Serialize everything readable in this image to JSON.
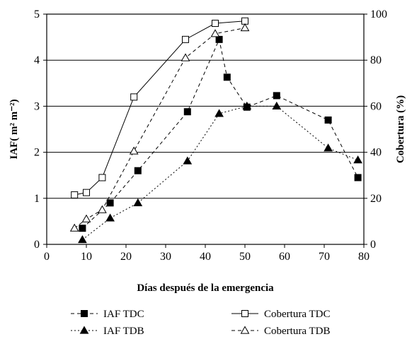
{
  "chart_data": {
    "type": "line",
    "xlabel": "Días después de la emergencia",
    "ylabel": "IAF( m² m⁻²)",
    "y2label": "Cobertura (%)",
    "xlim": [
      0,
      80
    ],
    "ylim": [
      0,
      5
    ],
    "y2lim": [
      0,
      100
    ],
    "xticks": [
      "0",
      "10",
      "20",
      "30",
      "40",
      "50",
      "60",
      "70",
      "80"
    ],
    "yticks": [
      "0",
      "1",
      "2",
      "3",
      "4",
      "5"
    ],
    "y2ticks": [
      "0",
      "20",
      "40",
      "60",
      "80",
      "100"
    ],
    "grid": "horizontal",
    "legend_position": "bottom",
    "series": [
      {
        "name": "IAF TDC",
        "axis": "left",
        "marker": "filled-square",
        "line": "dashed",
        "x": [
          9,
          16,
          23,
          35.5,
          43.5,
          45.5,
          50.5,
          58,
          71,
          78.5
        ],
        "y": [
          0.35,
          0.9,
          1.6,
          2.88,
          4.45,
          3.63,
          2.98,
          3.23,
          2.7,
          1.45
        ]
      },
      {
        "name": "IAF TDB",
        "axis": "left",
        "marker": "filled-triangle",
        "line": "dotted",
        "x": [
          9,
          16,
          23,
          35.5,
          43.5,
          50.5,
          58,
          71,
          78.5
        ],
        "y": [
          0.1,
          0.57,
          0.9,
          1.81,
          2.84,
          3.0,
          3.0,
          2.09,
          1.83
        ]
      },
      {
        "name": "Cobertura TDC",
        "axis": "right",
        "marker": "open-square",
        "line": "solid",
        "x": [
          7,
          10,
          14,
          22,
          35,
          42.5,
          50
        ],
        "y": [
          21.5,
          22.5,
          29,
          64,
          89,
          96,
          97
        ]
      },
      {
        "name": "Cobertura TDB",
        "axis": "right",
        "marker": "open-triangle",
        "line": "dashed",
        "x": [
          7,
          10,
          14,
          22,
          35,
          42.5,
          50
        ],
        "y": [
          7,
          11,
          15,
          40.5,
          81,
          91.5,
          94
        ]
      }
    ],
    "legend": {
      "left": [
        {
          "label": "IAF TDC",
          "series": 0
        },
        {
          "label": "IAF TDB",
          "series": 1
        }
      ],
      "right": [
        {
          "label": "Cobertura TDC",
          "series": 2
        },
        {
          "label": "Cobertura TDB",
          "series": 3
        }
      ]
    }
  }
}
